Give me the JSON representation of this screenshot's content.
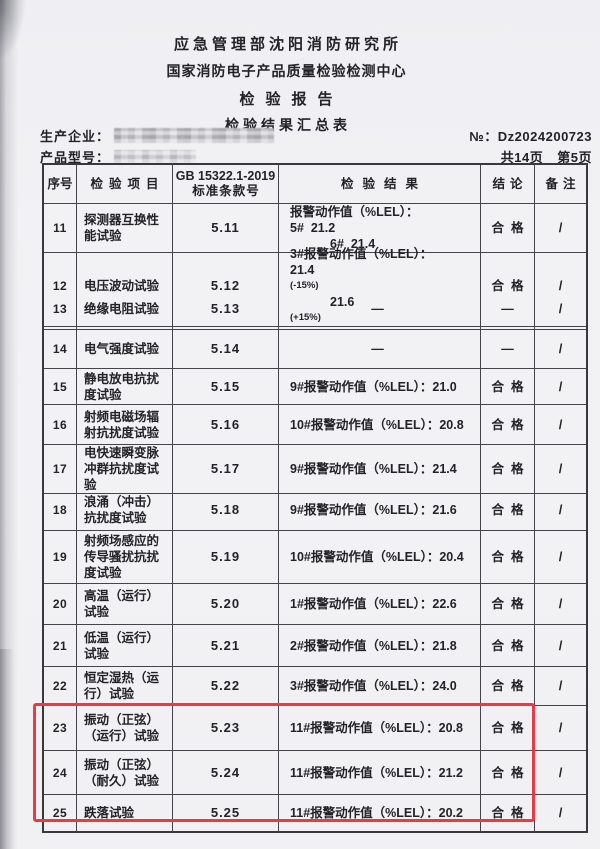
{
  "header": {
    "org_line1": "应急管理部沈阳消防研究所",
    "org_line2": "国家消防电子产品质量检验检测中心",
    "title": "检验报告",
    "subtitle": "检验结果汇总表"
  },
  "info": {
    "manufacturer_label": "生产企业：",
    "model_label": "产品型号：",
    "report_no_label": "№：",
    "report_no": "Dz2024200723",
    "pages_total": "共14页",
    "page_current": "第5页"
  },
  "table": {
    "headers": {
      "no": "序号",
      "item": "检验项目",
      "clause_line1": "GB 15322.1-2019",
      "clause_line2": "标准条款号",
      "result": "检验结果",
      "conclusion": "结论",
      "remark": "备注"
    },
    "rows": [
      {
        "no": "11",
        "item": [
          "探测器互换性",
          "能试验"
        ],
        "clause": "5.11",
        "result": [
          [
            {
              "t": "报警动作值（%LEL）："
            }
          ],
          [
            {
              "t": "5#  21.2"
            },
            {
              "t": "6#  21.4",
              "gap": true
            }
          ]
        ],
        "conclusion": "合格",
        "remark": "/"
      },
      {
        "no": "12",
        "item": [
          "电压波动试验"
        ],
        "clause": "5.12",
        "result": [
          [
            {
              "t": "3#报警动作值（%LEL）："
            }
          ],
          [
            {
              "t": "21.4"
            },
            {
              "t": "(-15%)",
              "small": true
            },
            {
              "t": "21.6",
              "gap": true
            },
            {
              "t": "(+15%)",
              "small": true
            }
          ]
        ],
        "conclusion": "合格",
        "remark": "/"
      },
      {
        "no": "13",
        "item": [
          "绝缘电阻试验"
        ],
        "clause": "5.13",
        "result": [
          [
            {
              "t": "—"
            }
          ]
        ],
        "result_align": "center",
        "conclusion": "—",
        "remark": "/"
      },
      {
        "no": "14",
        "item": [
          "电气强度试验"
        ],
        "clause": "5.14",
        "result": [
          [
            {
              "t": "—"
            }
          ]
        ],
        "result_align": "center",
        "conclusion": "—",
        "remark": "/"
      },
      {
        "no": "15",
        "item": [
          "静电放电抗扰",
          "度试验"
        ],
        "clause": "5.15",
        "result": [
          [
            {
              "t": "9#报警动作值（%LEL）：21.0"
            }
          ]
        ],
        "conclusion": "合格",
        "remark": "/"
      },
      {
        "no": "16",
        "item": [
          "射频电磁场辐",
          "射抗扰度试验"
        ],
        "clause": "5.16",
        "result": [
          [
            {
              "t": "10#报警动作值（%LEL）：20.8"
            }
          ]
        ],
        "conclusion": "合格",
        "remark": "/"
      },
      {
        "no": "17",
        "item": [
          "电快速瞬变脉",
          "冲群抗扰度试",
          "验"
        ],
        "clause": "5.17",
        "result": [
          [
            {
              "t": "9#报警动作值（%LEL）：21.4"
            }
          ]
        ],
        "conclusion": "合格",
        "remark": "/"
      },
      {
        "no": "18",
        "item": [
          "浪涌（冲击）",
          "抗扰度试验"
        ],
        "clause": "5.18",
        "result": [
          [
            {
              "t": "9#报警动作值（%LEL）：21.6"
            }
          ]
        ],
        "conclusion": "合格",
        "remark": "/"
      },
      {
        "no": "19",
        "item": [
          "射频场感应的",
          "传导骚扰抗扰",
          "度试验"
        ],
        "clause": "5.19",
        "result": [
          [
            {
              "t": "10#报警动作值（%LEL）：20.4"
            }
          ]
        ],
        "conclusion": "合格",
        "remark": "/"
      },
      {
        "no": "20",
        "item": [
          "高温（运行）",
          "试验"
        ],
        "clause": "5.20",
        "result": [
          [
            {
              "t": "1#报警动作值（%LEL）：22.6"
            }
          ]
        ],
        "conclusion": "合格",
        "remark": "/"
      },
      {
        "no": "21",
        "item": [
          "低温（运行）",
          "试验"
        ],
        "clause": "5.21",
        "result": [
          [
            {
              "t": "2#报警动作值（%LEL）：21.8"
            }
          ]
        ],
        "conclusion": "合格",
        "remark": "/"
      },
      {
        "no": "22",
        "item": [
          "恒定湿热（运",
          "行）试验"
        ],
        "clause": "5.22",
        "result": [
          [
            {
              "t": "3#报警动作值（%LEL）：24.0"
            }
          ]
        ],
        "conclusion": "合格",
        "remark": "/"
      },
      {
        "no": "23",
        "item": [
          "振动（正弦）",
          "（运行）试验"
        ],
        "clause": "5.23",
        "result": [
          [
            {
              "t": "11#报警动作值（%LEL）：20.8"
            }
          ]
        ],
        "conclusion": "合格",
        "remark": "/",
        "highlighted": true
      },
      {
        "no": "24",
        "item": [
          "振动（正弦）",
          "（耐久）试验"
        ],
        "clause": "5.24",
        "result": [
          [
            {
              "t": "11#报警动作值（%LEL）：21.2"
            }
          ]
        ],
        "conclusion": "合格",
        "remark": "/",
        "highlighted": true
      },
      {
        "no": "25",
        "item": [
          "跌落试验"
        ],
        "clause": "5.25",
        "result": [
          [
            {
              "t": "11#报警动作值（%LEL）：20.2"
            }
          ]
        ],
        "conclusion": "合格",
        "remark": "/",
        "highlighted": true
      }
    ]
  },
  "highlight_color": "#ea3a48"
}
